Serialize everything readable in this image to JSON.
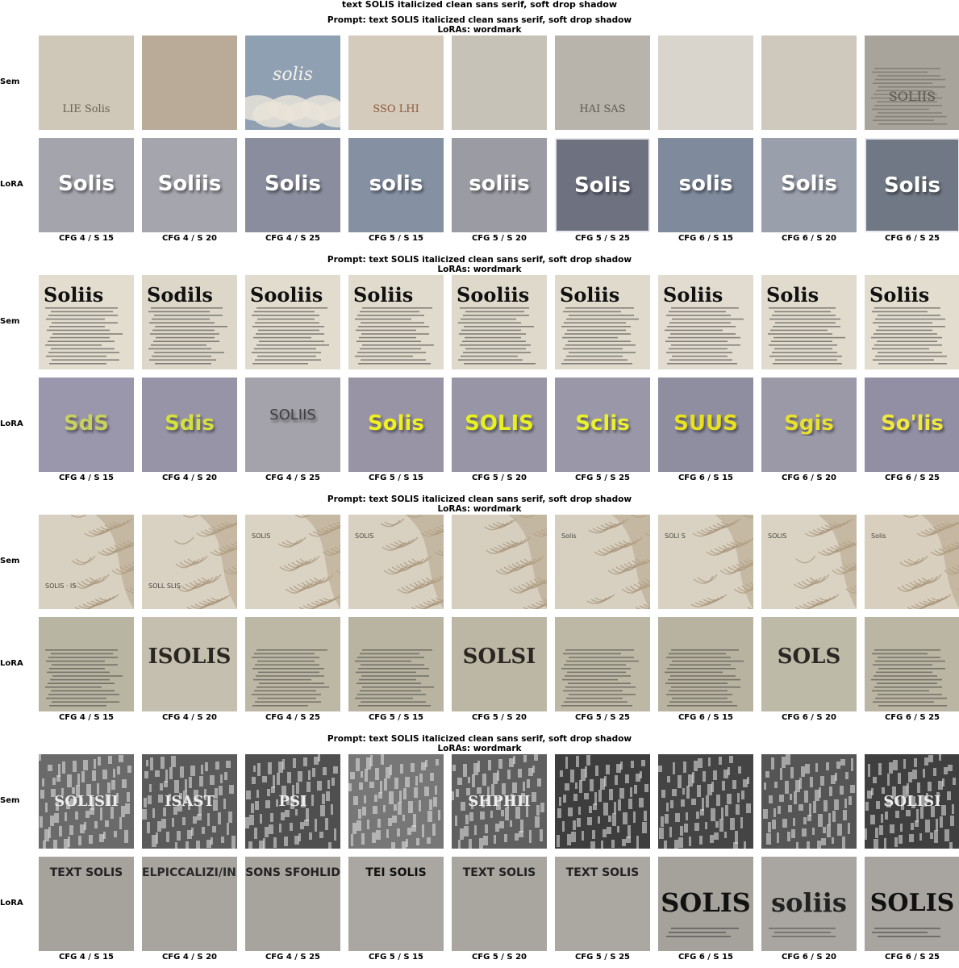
{
  "figure_title": "text SOLIS italicized clean sans serif, soft drop shadow",
  "grid": {
    "cfg": [
      4,
      5,
      6
    ],
    "steps": [
      15,
      20,
      25
    ]
  },
  "blocks": [
    {
      "prompt_line": "Prompt: text SOLIS italicized clean sans serif, soft drop shadow",
      "lora_line": "LoRAs: wordmark",
      "rows": [
        {
          "label": "Sem",
          "style": "collage",
          "bg": [
            "#cfc8b8",
            "#b9ab98",
            "#8fa0b3",
            "#d4cbbd",
            "#c7c2b8",
            "#b8b4ab",
            "#d9d4cc",
            "#cfc9bd",
            "#a8a49b"
          ],
          "fg": [
            "#6b5f55",
            "#5a5148",
            "#f4f1ea",
            "#8d5a3a",
            "#55504a",
            "#5f5b55",
            "#a8a39a",
            "#6a655e",
            "#5a5650"
          ],
          "words": [
            "LIE Solis",
            "",
            "solis",
            "SSO LHI",
            "",
            "HAI SAS",
            "",
            "",
            "SOLIIS"
          ],
          "texture": [
            "none",
            "none",
            "clouds",
            "none",
            "none",
            "none",
            "none",
            "none",
            "text"
          ]
        },
        {
          "label": "LoRA",
          "style": "flat",
          "bg": [
            "#a3a4ac",
            "#a5a6ad",
            "#8a8d9d",
            "#8591a2",
            "#9a9ba3",
            "#6e7180",
            "#7f8a9c",
            "#9a9fac",
            "#6f7884"
          ],
          "fg": [
            "#ffffff",
            "#ffffff",
            "#ffffff",
            "#ffffff",
            "#ffffff",
            "#ffffff",
            "#ffffff",
            "#ffffff",
            "#ffffff"
          ],
          "words": [
            "Solis",
            "Soliis",
            "Solis",
            "solis",
            "soliis",
            "Solis",
            "solis",
            "Solis",
            "Solis"
          ],
          "texture": [
            "none",
            "none",
            "none",
            "none",
            "none",
            "none",
            "none",
            "none",
            "none"
          ]
        }
      ]
    },
    {
      "prompt_line": "Prompt: text SOLIS italicized clean sans serif, soft drop shadow",
      "lora_line": "LoRAs: wordmark",
      "rows": [
        {
          "label": "Sem",
          "style": "newspaper",
          "bg": [
            "#e3ddd0",
            "#ddd7ca",
            "#e2dccf",
            "#e1dbce",
            "#dfd9cc",
            "#e0dacd",
            "#e2dcd0",
            "#e1dbce",
            "#e3ddd0"
          ],
          "fg": [
            "#111111",
            "#111111",
            "#111111",
            "#111111",
            "#111111",
            "#111111",
            "#111111",
            "#111111",
            "#111111"
          ],
          "words": [
            "Soliis",
            "Sodils",
            "Sooliis",
            "Soliis",
            "Sooliis",
            "Soliis",
            "Soliis",
            "Solis",
            "Soliis"
          ],
          "texture": [
            "text",
            "text",
            "text",
            "text",
            "text",
            "text",
            "text",
            "text",
            "text"
          ]
        },
        {
          "label": "LoRA",
          "style": "flat",
          "bg": [
            "#9a96ac",
            "#9894a8",
            "#a4a3ab",
            "#9894a6",
            "#9896a6",
            "#9a98a8",
            "#8e8ea0",
            "#9b98a8",
            "#928ea4"
          ],
          "fg": [
            "#c8d060",
            "#d4e040",
            "#404040",
            "#f0f020",
            "#e8f020",
            "#e8f030",
            "#e8e020",
            "#e8e030",
            "#f0e840"
          ],
          "words": [
            "SdS",
            "Sdis",
            "SOLIIS",
            "Solis",
            "SOLIS",
            "Sclis",
            "SUUS",
            "Sgis",
            "So'lis"
          ],
          "texture": [
            "none",
            "none",
            "none",
            "none",
            "none",
            "none",
            "none",
            "none",
            "none"
          ]
        }
      ]
    },
    {
      "prompt_line": "Prompt: text SOLIS italicized clean sans serif, soft drop shadow",
      "lora_line": "LoRAs: wordmark",
      "rows": [
        {
          "label": "Sem",
          "style": "fur",
          "bg": [
            "#d8d0c0",
            "#d9d1c2",
            "#dad3c4",
            "#d8d1c2",
            "#d6cfc0",
            "#d7d0c1",
            "#d9d2c3",
            "#dad3c4",
            "#d8cfbe"
          ],
          "fg": [
            "#4a4540",
            "#4a4540",
            "#4a4540",
            "#4a4540",
            "#4a4540",
            "#4a4540",
            "#4a4540",
            "#4a4540",
            "#4a4540"
          ],
          "words": [
            "SOLIS · IS",
            "SOLL SLIS",
            "SOLIS",
            "SOLIS",
            "",
            "Solis",
            "SOLI S",
            "SOLIS",
            "Solis"
          ],
          "texture": [
            "fur",
            "fur",
            "fur",
            "fur",
            "fur",
            "fur",
            "fur",
            "fur",
            "fur"
          ]
        },
        {
          "label": "LoRA",
          "style": "typeset",
          "bg": [
            "#b9b5a3",
            "#c4bfae",
            "#bdb8a6",
            "#b9b4a2",
            "#bcb7a5",
            "#bdb8a6",
            "#b8b3a1",
            "#bebaa8",
            "#bbb6a4"
          ],
          "fg": [
            "#222222",
            "#2a2622",
            "#222222",
            "#222222",
            "#2a2622",
            "#222222",
            "#222222",
            "#2a2622",
            "#222222"
          ],
          "words": [
            "",
            "ISOLIS",
            "",
            "",
            "SOLSI",
            "",
            "",
            "SOLS",
            ""
          ],
          "texture": [
            "text",
            "none",
            "text",
            "text",
            "none",
            "text",
            "text",
            "none",
            "text"
          ]
        }
      ]
    },
    {
      "prompt_line": "Prompt: text SOLIS italicized clean sans serif, soft drop shadow",
      "lora_line": "LoRAs: wordmark",
      "rows": [
        {
          "label": "Sem",
          "style": "pattern",
          "bg": [
            "#6a6a6a",
            "#5a5a5a",
            "#4f4f4f",
            "#777777",
            "#5f5f5f",
            "#3d3d3d",
            "#444444",
            "#555555",
            "#3f3f3f"
          ],
          "fg": [
            "#eeeeee",
            "#eeeeee",
            "#eeeeee",
            "#eeeeee",
            "#eeeeee",
            "#eeeeee",
            "#eeeeee",
            "#eeeeee",
            "#eeeeee"
          ],
          "words": [
            "SOLISII",
            "ISAST",
            "PSI",
            "",
            "SHPHII",
            "",
            "",
            "",
            "SOLISI"
          ],
          "texture": [
            "pattern",
            "pattern",
            "pattern",
            "pattern",
            "pattern",
            "pattern",
            "pattern",
            "pattern",
            "pattern"
          ]
        },
        {
          "label": "LoRA",
          "style": "specimen",
          "bg": [
            "#a6a29c",
            "#a8a49e",
            "#a7a39d",
            "#aaa7a2",
            "#a9a6a0",
            "#aba8a2",
            "#a5a19b",
            "#a9a6a1",
            "#a8a49f"
          ],
          "fg": [
            "#222222",
            "#2a2a2a",
            "#222222",
            "#111111",
            "#222222",
            "#222222",
            "#111111",
            "#222222",
            "#111111"
          ],
          "words": [
            "TEXT SOLIS",
            "ELPICCALIZI/INES",
            "SONS SFOHLID",
            "TEI SOLIS",
            "TEXT SOLIS",
            "TEXT SOLIS",
            "SOLIS",
            "soliis",
            "SOLIS"
          ],
          "texture": [
            "lines",
            "lines",
            "lines",
            "lines",
            "lines",
            "lines",
            "caption",
            "caption",
            "caption"
          ]
        }
      ]
    }
  ]
}
